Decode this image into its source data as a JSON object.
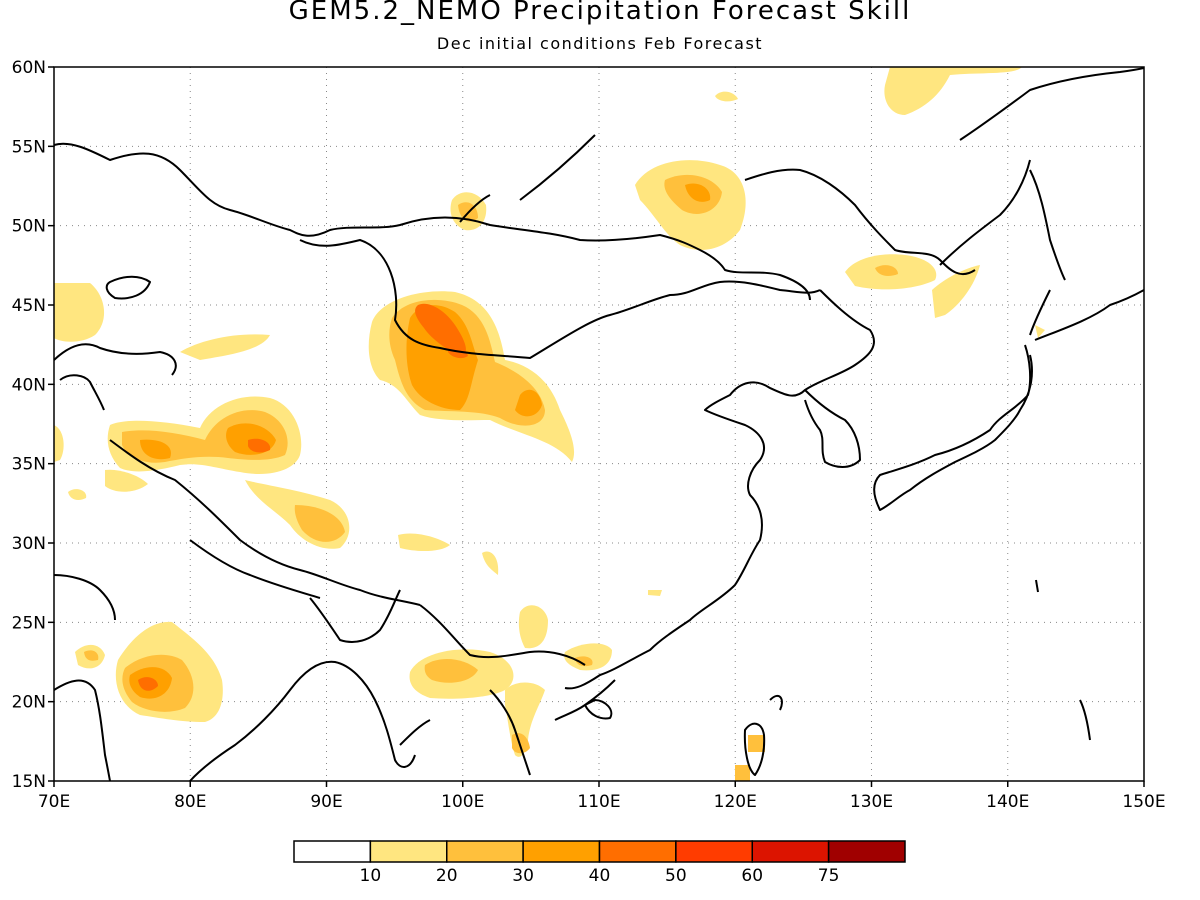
{
  "title": "GEM5.2_NEMO Precipitation Forecast Skill",
  "subtitle": "Dec initial conditions  Feb Forecast",
  "map": {
    "lon_range": [
      70,
      150
    ],
    "lat_range": [
      15,
      60
    ],
    "lon_ticks": [
      "70E",
      "80E",
      "90E",
      "100E",
      "110E",
      "120E",
      "130E",
      "140E",
      "150E"
    ],
    "lat_ticks": [
      "15N",
      "20N",
      "25N",
      "30N",
      "35N",
      "40N",
      "45N",
      "50N",
      "55N",
      "60N"
    ],
    "gridlines": "dotted"
  },
  "colorbar": {
    "colors": [
      "#ffffff",
      "#ffe680",
      "#ffc03c",
      "#ffa000",
      "#ff6e00",
      "#ff3c00",
      "#dc1400",
      "#a00000"
    ],
    "labels": [
      "10",
      "20",
      "30",
      "40",
      "50",
      "60",
      "75"
    ]
  }
}
